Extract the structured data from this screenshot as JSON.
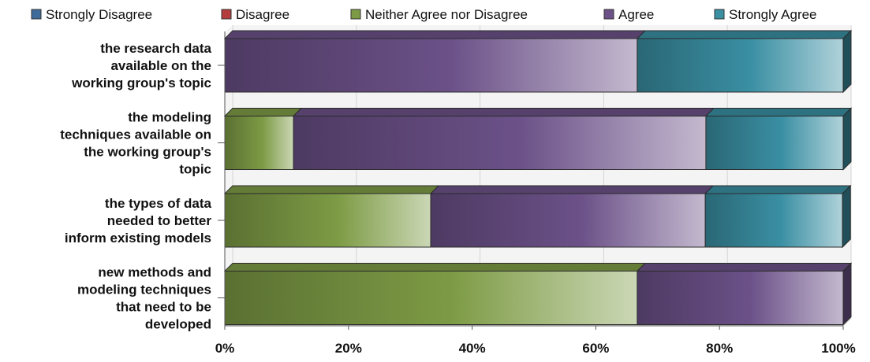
{
  "chart_data": {
    "type": "bar",
    "orientation": "horizontal",
    "stacked": "percent",
    "three_d": true,
    "categories": [
      "the research data available on the working group's topic",
      "the modeling techniques available on the working group's topic",
      "the types of data needed to better inform existing models",
      "new methods and modeling techniques that need to be developed"
    ],
    "category_lines": [
      [
        "the research data",
        "available on the",
        "working group's topic"
      ],
      [
        "the modeling",
        "techniques available on",
        "the working group's",
        "topic"
      ],
      [
        "the types of data",
        "needed to better",
        "inform existing models"
      ],
      [
        "new methods and",
        "modeling techniques",
        "that need to be",
        "developed"
      ]
    ],
    "series": [
      {
        "name": "Strongly Disagree",
        "color": "#3f6b9a",
        "values": [
          0,
          0,
          0,
          0
        ]
      },
      {
        "name": "Disagree",
        "color": "#b43c3c",
        "values": [
          0,
          0,
          0,
          0
        ]
      },
      {
        "name": "Neither Agree nor Disagree",
        "color": "#7d9b45",
        "values": [
          0,
          11.1,
          33.3,
          66.7
        ]
      },
      {
        "name": "Agree",
        "color": "#6b5188",
        "values": [
          66.7,
          66.7,
          44.4,
          33.3
        ]
      },
      {
        "name": "Strongly Agree",
        "color": "#3a8fa3",
        "values": [
          33.3,
          22.2,
          22.2,
          0
        ]
      }
    ],
    "xlim": [
      0,
      100
    ],
    "x_ticks": [
      "0%",
      "20%",
      "40%",
      "60%",
      "80%",
      "100%"
    ],
    "x_tick_values": [
      0,
      20,
      40,
      60,
      80,
      100
    ],
    "grid": true,
    "legend_position": "top"
  }
}
